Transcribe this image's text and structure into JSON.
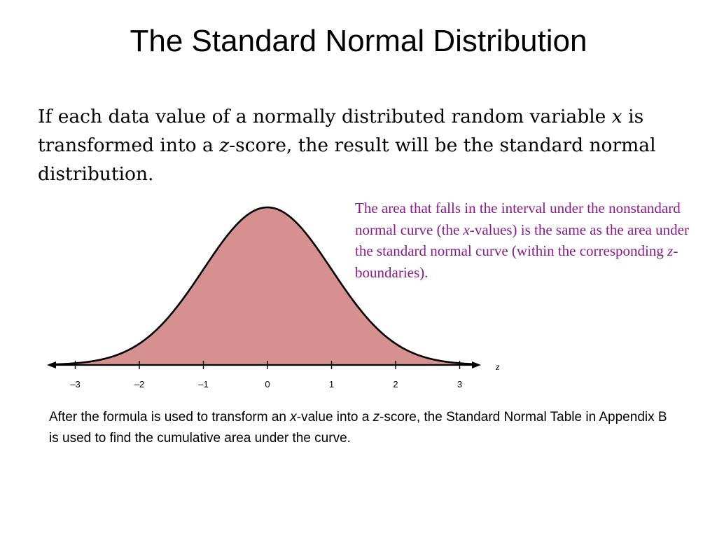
{
  "title": "The Standard Normal Distribution",
  "intro": {
    "part1": "If each data value of a normally distributed random variable ",
    "var_x": "x",
    "part2": " is transformed into a ",
    "var_z": "z",
    "part3": "-score, the result will be the standard normal distribution."
  },
  "callout": {
    "part1": "The area that falls in the interval under the nonstandard normal curve (the ",
    "var_x": "x",
    "part2": "-values)  is the same as the area under the standard normal curve (within the corresponding  ",
    "var_z": "z",
    "part3": "-boundaries).",
    "color": "#8a1a8a"
  },
  "chart_data": {
    "type": "area",
    "distribution": "standard normal",
    "fill_color": "#d69090",
    "xlabel": "z",
    "x_ticks": [
      "–3",
      "–2",
      "–1",
      "0",
      "1",
      "2",
      "3"
    ],
    "x_tick_values": [
      -3,
      -2,
      -1,
      0,
      1,
      2,
      3
    ],
    "xlim": [
      -3.3,
      3.2
    ]
  },
  "footer": {
    "part1": "After the formula is used to transform an ",
    "var_x": "x",
    "part2": "-value into a ",
    "var_z": "z",
    "part3": "-score, the Standard Normal Table in Appendix B is used to find the cumulative area under the curve."
  }
}
